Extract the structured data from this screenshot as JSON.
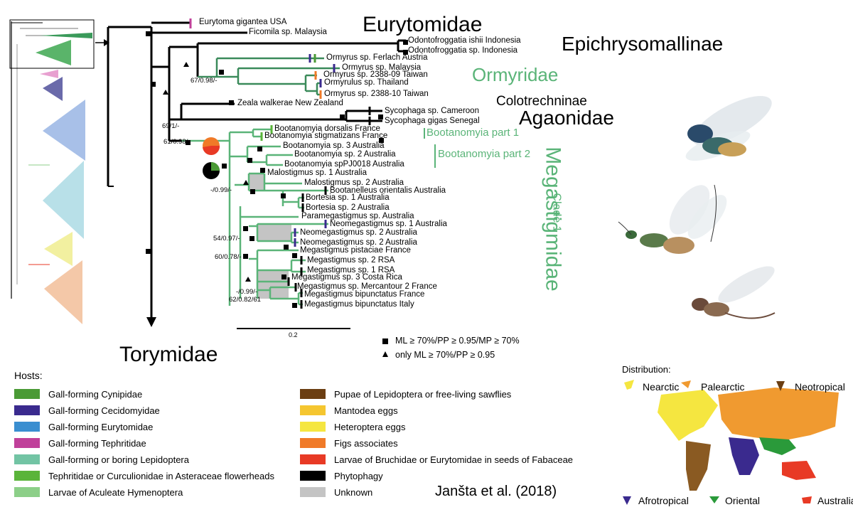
{
  "families": {
    "eurytomidae": "Eurytomidae",
    "epichrysomallinae": "Epichrysomallinae",
    "ormyridae": "Ormyridae",
    "colotrechninae": "Colotrechninae",
    "agaonidae": "Agaonidae",
    "megastigmidae": "Megastigmidae",
    "clade1": "Clade 1",
    "torymidae": "Torymidae"
  },
  "groups": {
    "bootanomyia1": "Bootanomyia part 1",
    "bootanomyia2": "Bootanomyia part 2"
  },
  "taxa": [
    "Eurytoma gigantea USA",
    "Ficomila sp. Malaysia",
    "Odontofroggatia ishii Indonesia",
    "Odontofroggatia sp. Indonesia",
    "Ormyrus sp. Ferlach Austria",
    "Ormyrus sp. Malaysia",
    "Ormyrus sp. 2388-09 Taiwan",
    "Ormyrulus sp. Thailand",
    "Ormyrus sp. 2388-10 Taiwan",
    "Zeala walkerae New Zealand",
    "Sycophaga sp. Cameroon",
    "Sycophaga gigas Senegal",
    "Bootanomyia dorsalis France",
    "Bootanomyia stigmatizans France",
    "Bootanomyia sp. 3 Australia",
    "Bootanomyia sp. 2 Australia",
    "Bootanomyia spPJ0018 Australia",
    "Malostigmus sp. 1 Australia",
    "Malostigmus sp. 2 Australia",
    "Bootanelleus orientalis Australia",
    "Bortesia sp. 1 Australia",
    "Bortesia sp. 2 Australia",
    "Paramegastigmus sp. Australia",
    "Neomegastigmus sp. 1 Australia",
    "Neomegastigmus sp. 2 Australia",
    "Neomegastigmus sp. 2 Australia",
    "Megastigmus pistaciae France",
    "Megastigmus sp. 2 RSA",
    "Megastigmus sp. 1 RSA",
    "Megastigmus sp. 3 Costa Rica",
    "Megastigmus sp. Mercantour 2 France",
    "Megastigmus bipunctatus France",
    "Megastigmus bipunctatus Italy"
  ],
  "supports": {
    "s1": "67/0.98/-",
    "s2": "69/1/-",
    "s3": "61/0.98/-",
    "s4": "-/0.99/-",
    "s5": "54/0.97/-",
    "s6": "60/0.78/-",
    "s7": "-/0.99/-",
    "s8": "62/0.82/61"
  },
  "scale": "0.2",
  "support_legend": {
    "square": "ML  ≥ 70%/PP ≥ 0.95/MP ≥ 70%",
    "triangle": "only ML ≥ 70%/PP ≥ 0.95"
  },
  "hosts_title": "Hosts:",
  "hosts": [
    {
      "label": "Gall-forming Cynipidae",
      "color": "#4a9a35"
    },
    {
      "label": "Gall-forming Cecidomyidae",
      "color": "#3a2a8e"
    },
    {
      "label": "Gall-forming Eurytomidae",
      "color": "#3a8ed0"
    },
    {
      "label": "Gall-forming Tephritidae",
      "color": "#c0409a"
    },
    {
      "label": "Gall-forming or boring Lepidoptera",
      "color": "#72c4a4"
    },
    {
      "label": "Tephritidae or Curculionidae in Asteraceae flowerheads",
      "color": "#5ab43a"
    },
    {
      "label": "Larvae of Aculeate Hymenoptera",
      "color": "#8ccf88"
    },
    {
      "label": "Pupae of Lepidoptera or free-living sawflies",
      "color": "#6b3e12"
    },
    {
      "label": "Mantodea eggs",
      "color": "#f5c630"
    },
    {
      "label": "Heteroptera eggs",
      "color": "#f5e640"
    },
    {
      "label": "Figs associates",
      "color": "#f07a28"
    },
    {
      "label": "Larvae of Bruchidae or Eurytomidae in seeds of Fabaceae",
      "color": "#e83a25"
    },
    {
      "label": "Phytophagy",
      "color": "#000000"
    },
    {
      "label": "Unknown",
      "color": "#c4c4c4"
    }
  ],
  "distribution_title": "Distribution:",
  "regions": {
    "nearctic": "Nearctic",
    "palearctic": "Palearctic",
    "neotropical": "Neotropical",
    "afrotropical": "Afrotropical",
    "oriental": "Oriental",
    "australian": "Australian"
  },
  "citation": "Janšta et al. (2018)"
}
